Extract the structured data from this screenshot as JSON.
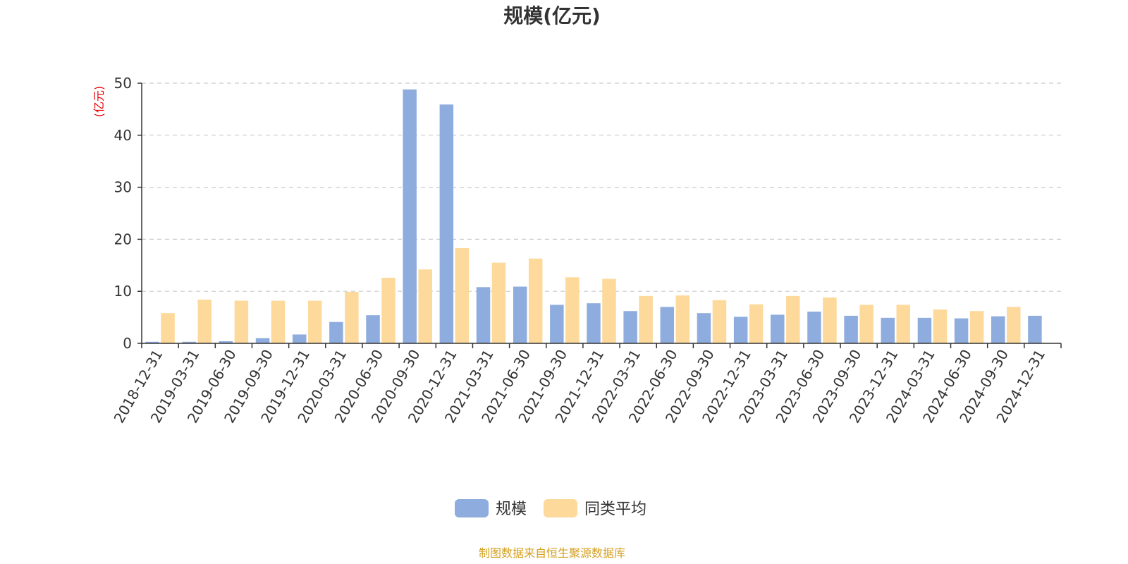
{
  "chart_data": {
    "type": "bar",
    "title": "规模(亿元)",
    "y_unit": "(亿元)",
    "ylim": [
      0,
      50
    ],
    "y_ticks": [
      0,
      10,
      20,
      30,
      40,
      50
    ],
    "grid": "horizontal-dashed",
    "legend_position": "bottom-center",
    "categories": [
      "2018-12-31",
      "2019-03-31",
      "2019-06-30",
      "2019-09-30",
      "2019-12-31",
      "2020-03-31",
      "2020-06-30",
      "2020-09-30",
      "2020-12-31",
      "2021-03-31",
      "2021-06-30",
      "2021-09-30",
      "2021-12-31",
      "2022-03-31",
      "2022-06-30",
      "2022-09-30",
      "2022-12-31",
      "2023-03-31",
      "2023-06-30",
      "2023-09-30",
      "2023-12-31",
      "2024-03-31",
      "2024-06-30",
      "2024-09-30",
      "2024-12-31"
    ],
    "series": [
      {
        "name": "规模",
        "color": "#8eadde",
        "values": [
          0.3,
          0.3,
          0.4,
          1.0,
          1.7,
          4.1,
          5.4,
          48.8,
          45.9,
          10.8,
          10.9,
          7.4,
          7.7,
          6.2,
          7.0,
          5.8,
          5.1,
          5.5,
          6.1,
          5.3,
          4.9,
          4.9,
          4.8,
          5.2,
          5.3
        ]
      },
      {
        "name": "同类平均",
        "color": "#fdd99b",
        "values": [
          5.8,
          8.4,
          8.2,
          8.2,
          8.2,
          9.9,
          12.6,
          14.2,
          18.3,
          15.5,
          16.3,
          12.7,
          12.4,
          9.1,
          9.2,
          8.3,
          7.5,
          9.1,
          8.8,
          7.4,
          7.4,
          6.5,
          6.2,
          7.0,
          null
        ]
      }
    ]
  },
  "footer": {
    "source": "制图数据来自恒生聚源数据库"
  }
}
